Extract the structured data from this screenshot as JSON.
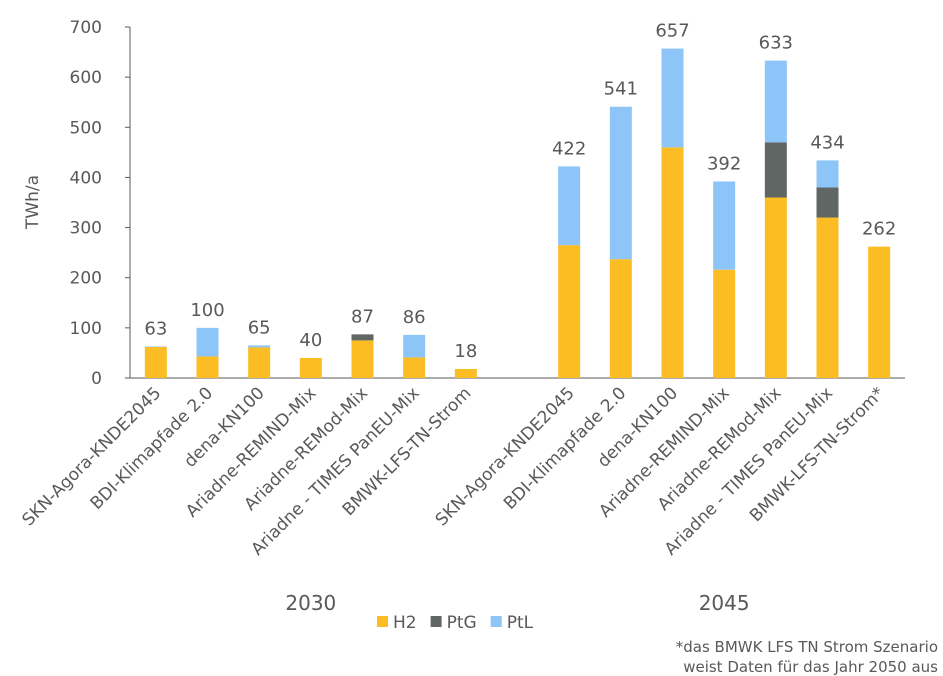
{
  "chart_data": {
    "type": "stacked_bar",
    "y_label": "TWh/a",
    "groups": [
      {
        "label": "2030",
        "categories": [
          "SKN-Agora-KNDE2045",
          "BDI-Klimapfade 2.0",
          "dena-KN100",
          "Ariadne-REMIND-Mix",
          "Ariadne-REMod-Mix",
          "Ariadne - TIMES PanEU-Mix",
          "BMWK-LFS-TN-Strom"
        ]
      },
      {
        "label": "2045",
        "categories": [
          "SKN-Agora-KNDE2045",
          "BDI-Klimapfade 2.0",
          "dena-KN100",
          "Ariadne-REMIND-Mix",
          "Ariadne-REMod-Mix",
          "Ariadne - TIMES PanEU-Mix",
          "BMWK-LFS-TN-Strom*"
        ]
      }
    ],
    "series": [
      {
        "name": "H2",
        "color": "#fbbc24",
        "values": [
          62,
          43,
          61,
          40,
          75,
          41,
          18,
          265,
          237,
          460,
          216,
          360,
          320,
          262
        ]
      },
      {
        "name": "PtG",
        "color": "#5f6664",
        "values": [
          0,
          0,
          0,
          0,
          12,
          0,
          0,
          0,
          0,
          0,
          0,
          110,
          60,
          0
        ]
      },
      {
        "name": "PtL",
        "color": "#8ec5f9",
        "values": [
          1,
          57,
          4,
          0,
          0,
          45,
          0,
          157,
          304,
          197,
          176,
          163,
          54,
          0
        ]
      }
    ],
    "totals": [
      63,
      100,
      65,
      40,
      87,
      86,
      18,
      422,
      541,
      657,
      392,
      633,
      434,
      262
    ],
    "ylim": [
      0,
      700
    ],
    "yticks": [
      0,
      100,
      200,
      300,
      400,
      500,
      600,
      700
    ],
    "legend": "bottom",
    "footnote": [
      "*das BMWK LFS TN Strom Szenario",
      "weist Daten für das Jahr 2050 aus"
    ]
  }
}
